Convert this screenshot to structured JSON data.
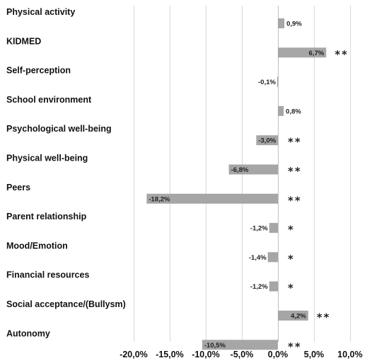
{
  "chart_data": {
    "type": "bar",
    "orientation": "horizontal",
    "categories": [
      "Physical activity",
      "KIDMED",
      "Self-perception",
      "School environment",
      "Psychological well-being",
      "Physical well-being",
      "Peers",
      "Parent relationship",
      "Mood/Emotion",
      "Financial resources",
      "Social acceptance/(Bullysm)",
      "Autonomy"
    ],
    "values": [
      0.9,
      6.7,
      -0.1,
      0.8,
      -3.0,
      -6.8,
      -18.2,
      -1.2,
      -1.4,
      -1.2,
      4.2,
      -10.5
    ],
    "data_labels": [
      "0,9%",
      "6,7%",
      "-0,1%",
      "0,8%",
      "-3,0%",
      "-6,8%",
      "-18,2%",
      "-1,2%",
      "-1,4%",
      "-1,2%",
      "4,2%",
      "-10,5%"
    ],
    "significance": [
      "",
      "**",
      "",
      "",
      "**",
      "**",
      "**",
      "*",
      "*",
      "*",
      "**",
      "**"
    ],
    "xlim": [
      -20,
      10
    ],
    "xticks": [
      -20,
      -15,
      -10,
      -5,
      0,
      5,
      10
    ],
    "xtick_labels": [
      "-20,0%",
      "-15,0%",
      "-10,0%",
      "-5,0%",
      "0,0%",
      "5,0%",
      "10,0%"
    ],
    "grid": true,
    "legend": "none",
    "colors": {
      "bar": "#a6a6a6",
      "grid": "#d9d9d9",
      "text": "#111111"
    },
    "title": "",
    "xlabel": "",
    "ylabel": ""
  }
}
